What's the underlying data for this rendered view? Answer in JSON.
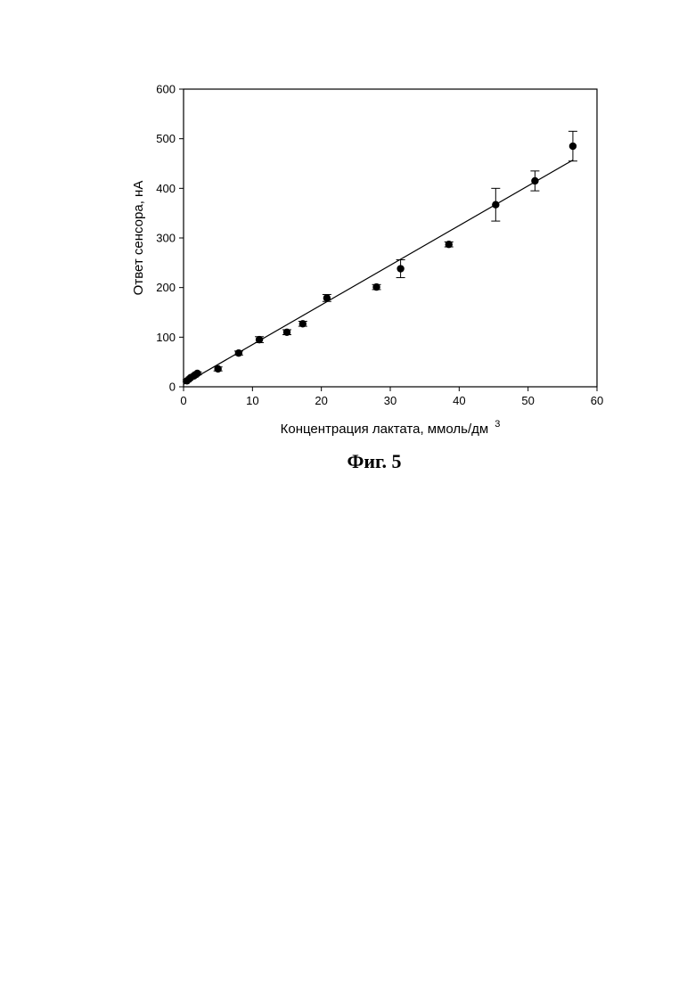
{
  "chart_data": {
    "type": "scatter",
    "xlabel": "Концентрация лактата, ммоль/дм",
    "xlabel_superscript": "3",
    "ylabel": "Ответ сенсора, нА",
    "xlim": [
      0,
      60
    ],
    "ylim": [
      0,
      600
    ],
    "xticks": [
      0,
      10,
      20,
      30,
      40,
      50,
      60
    ],
    "yticks": [
      0,
      100,
      200,
      300,
      400,
      500,
      600
    ],
    "grid": false,
    "series": [
      {
        "points": [
          {
            "x": 0.5,
            "y": 12,
            "err": 2
          },
          {
            "x": 1.0,
            "y": 18,
            "err": 2
          },
          {
            "x": 1.5,
            "y": 22,
            "err": 3
          },
          {
            "x": 2.0,
            "y": 27,
            "err": 3
          },
          {
            "x": 5.0,
            "y": 36,
            "err": 4
          },
          {
            "x": 8.0,
            "y": 68,
            "err": 4
          },
          {
            "x": 11.0,
            "y": 95,
            "err": 6
          },
          {
            "x": 15.0,
            "y": 110,
            "err": 5
          },
          {
            "x": 17.3,
            "y": 127,
            "err": 5
          },
          {
            "x": 20.8,
            "y": 179,
            "err": 7
          },
          {
            "x": 28.0,
            "y": 201,
            "err": 5
          },
          {
            "x": 31.5,
            "y": 238,
            "err": 18
          },
          {
            "x": 38.5,
            "y": 287,
            "err": 5
          },
          {
            "x": 45.3,
            "y": 367,
            "err": 33
          },
          {
            "x": 51.0,
            "y": 415,
            "err": 20
          },
          {
            "x": 56.5,
            "y": 485,
            "err": 30
          }
        ]
      }
    ],
    "fit_line": {
      "x": [
        0,
        56.5
      ],
      "y": [
        5,
        457
      ]
    }
  },
  "caption": "Фиг. 5"
}
